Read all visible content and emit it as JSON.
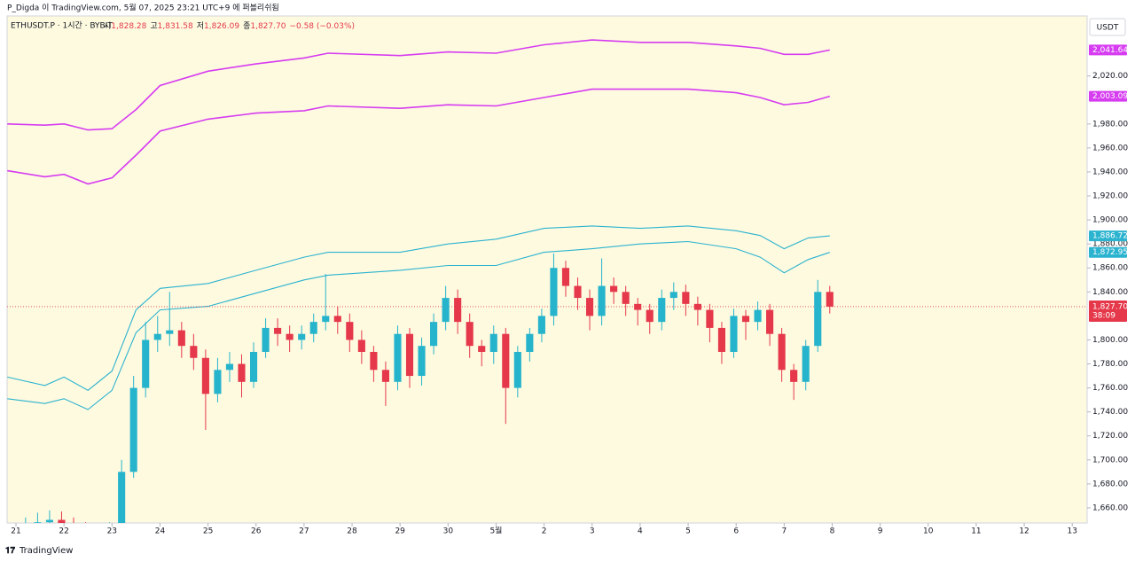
{
  "chart_data": {
    "type": "candlestick",
    "header": "P_Digda 이 TradingView.com, 5월 07, 2025 23:21 UTC+9 에 퍼블리쉬됨",
    "symbol": "ETHUSDT.P · 1시간 · BYBIT",
    "ohlc": [
      {
        "label": "시",
        "value": "1,828.28"
      },
      {
        "label": "고",
        "value": "1,831.58"
      },
      {
        "label": "저",
        "value": "1,826.09"
      },
      {
        "label": "종",
        "value": "1,827.70"
      }
    ],
    "change": "−0.58 (−0.03%)",
    "currency": "USDT",
    "footer": "TradingView",
    "xlim": [
      -0.185,
      22.31
    ],
    "xticks": [
      {
        "value": 0,
        "label": "21"
      },
      {
        "value": 1,
        "label": "22"
      },
      {
        "value": 2,
        "label": "23"
      },
      {
        "value": 3,
        "label": "24"
      },
      {
        "value": 4,
        "label": "25"
      },
      {
        "value": 5,
        "label": "26"
      },
      {
        "value": 6,
        "label": "27"
      },
      {
        "value": 7,
        "label": "28"
      },
      {
        "value": 8,
        "label": "29"
      },
      {
        "value": 9,
        "label": "30"
      },
      {
        "value": 10,
        "label": "5월"
      },
      {
        "value": 11,
        "label": "2"
      },
      {
        "value": 12,
        "label": "3"
      },
      {
        "value": 13,
        "label": "4"
      },
      {
        "value": 14,
        "label": "5"
      },
      {
        "value": 15,
        "label": "6"
      },
      {
        "value": 16,
        "label": "7"
      },
      {
        "value": 17,
        "label": "8"
      },
      {
        "value": 18,
        "label": "9"
      },
      {
        "value": 19,
        "label": "10"
      },
      {
        "value": 20,
        "label": "11"
      },
      {
        "value": 21,
        "label": "12"
      },
      {
        "value": 22,
        "label": "13"
      }
    ],
    "ylim": [
      1647.4,
      2070
    ],
    "yticks": [
      {
        "value": 1660,
        "label": "1,660.00"
      },
      {
        "value": 1680,
        "label": "1,680.00"
      },
      {
        "value": 1700,
        "label": "1,700.00"
      },
      {
        "value": 1720,
        "label": "1,720.00"
      },
      {
        "value": 1740,
        "label": "1,740.00"
      },
      {
        "value": 1760,
        "label": "1,760.00"
      },
      {
        "value": 1780,
        "label": "1,780.00"
      },
      {
        "value": 1800,
        "label": "1,800.00"
      },
      {
        "value": 1840,
        "label": "1,840.00"
      },
      {
        "value": 1860,
        "label": "1,860.00"
      },
      {
        "value": 1880,
        "label": "1,880.00"
      },
      {
        "value": 1900,
        "label": "1,900.00"
      },
      {
        "value": 1920,
        "label": "1,920.00"
      },
      {
        "value": 1940,
        "label": "1,940.00"
      },
      {
        "value": 1960,
        "label": "1,960.00"
      },
      {
        "value": 1980,
        "label": "1,980.00"
      },
      {
        "value": 2020,
        "label": "2,020.00"
      }
    ],
    "up_color": "#26b4cc",
    "down_color": "#e5384a",
    "candles": {
      "x": [
        0.2,
        0.45,
        0.7,
        0.95,
        1.2,
        1.45,
        1.7,
        1.95,
        2.2,
        2.45,
        2.7,
        2.95,
        3.2,
        3.45,
        3.7,
        3.95,
        4.2,
        4.45,
        4.7,
        4.95,
        5.2,
        5.45,
        5.7,
        5.95,
        6.2,
        6.45,
        6.7,
        6.95,
        7.2,
        7.45,
        7.7,
        7.95,
        8.2,
        8.45,
        8.7,
        8.95,
        9.2,
        9.45,
        9.7,
        9.95,
        10.2,
        10.45,
        10.7,
        10.95,
        11.2,
        11.45,
        11.7,
        11.95,
        12.2,
        12.45,
        12.7,
        12.95,
        13.2,
        13.45,
        13.7,
        13.95,
        14.2,
        14.45,
        14.7,
        14.95,
        15.2,
        15.45,
        15.7,
        15.95,
        16.2,
        16.45,
        16.7,
        16.95
      ],
      "open": [
        1643,
        1645,
        1648,
        1650,
        1646,
        1643,
        1641,
        1640,
        1642,
        1690,
        1760,
        1800,
        1805,
        1808,
        1795,
        1785,
        1755,
        1775,
        1780,
        1765,
        1790,
        1810,
        1805,
        1800,
        1805,
        1815,
        1820,
        1815,
        1800,
        1790,
        1775,
        1765,
        1805,
        1770,
        1795,
        1815,
        1835,
        1815,
        1795,
        1790,
        1805,
        1760,
        1790,
        1805,
        1820,
        1860,
        1845,
        1835,
        1820,
        1845,
        1840,
        1830,
        1825,
        1815,
        1835,
        1840,
        1830,
        1825,
        1810,
        1790,
        1820,
        1815,
        1825,
        1805,
        1775,
        1765,
        1795,
        1840
      ],
      "high": [
        1652,
        1656,
        1658,
        1657,
        1652,
        1648,
        1646,
        1648,
        1700,
        1770,
        1815,
        1820,
        1840,
        1815,
        1805,
        1792,
        1785,
        1790,
        1788,
        1798,
        1818,
        1818,
        1812,
        1812,
        1822,
        1855,
        1828,
        1822,
        1808,
        1795,
        1782,
        1812,
        1810,
        1802,
        1822,
        1845,
        1842,
        1822,
        1800,
        1812,
        1810,
        1795,
        1810,
        1826,
        1872,
        1866,
        1852,
        1842,
        1868,
        1852,
        1845,
        1835,
        1830,
        1842,
        1848,
        1846,
        1836,
        1830,
        1815,
        1826,
        1825,
        1832,
        1830,
        1810,
        1780,
        1800,
        1850,
        1845
      ],
      "low": [
        1636,
        1638,
        1642,
        1640,
        1636,
        1634,
        1632,
        1634,
        1636,
        1685,
        1752,
        1790,
        1795,
        1785,
        1775,
        1725,
        1748,
        1765,
        1752,
        1760,
        1785,
        1795,
        1790,
        1792,
        1798,
        1808,
        1805,
        1790,
        1780,
        1765,
        1745,
        1758,
        1760,
        1762,
        1788,
        1808,
        1805,
        1785,
        1778,
        1780,
        1730,
        1752,
        1782,
        1798,
        1812,
        1836,
        1825,
        1808,
        1812,
        1830,
        1820,
        1812,
        1805,
        1808,
        1825,
        1820,
        1812,
        1798,
        1780,
        1785,
        1800,
        1808,
        1795,
        1765,
        1750,
        1758,
        1790,
        1822
      ],
      "close": [
        1645,
        1648,
        1650,
        1646,
        1643,
        1641,
        1640,
        1642,
        1690,
        1760,
        1800,
        1805,
        1808,
        1795,
        1785,
        1755,
        1775,
        1780,
        1765,
        1790,
        1810,
        1805,
        1800,
        1805,
        1815,
        1820,
        1815,
        1800,
        1790,
        1775,
        1765,
        1805,
        1770,
        1795,
        1815,
        1835,
        1815,
        1795,
        1790,
        1805,
        1760,
        1790,
        1805,
        1820,
        1860,
        1845,
        1835,
        1820,
        1845,
        1840,
        1830,
        1825,
        1815,
        1835,
        1840,
        1830,
        1825,
        1810,
        1790,
        1820,
        1815,
        1825,
        1805,
        1775,
        1765,
        1795,
        1840,
        1827.7
      ]
    },
    "bands": [
      {
        "color": "#d63cf0",
        "x": [
          -0.18,
          0.6,
          1.0,
          1.5,
          2.0,
          2.5,
          3.0,
          4.0,
          5.0,
          6.0,
          6.5,
          8.0,
          9.0,
          10.0,
          11.0,
          12.0,
          13.0,
          14.0,
          15.0,
          15.5,
          16.0,
          16.5,
          16.95
        ],
        "values": [
          1980,
          1979,
          1980,
          1975,
          1976,
          1992,
          2012,
          2024,
          2030,
          2035,
          2039,
          2037,
          2040,
          2039,
          2046,
          2050,
          2048,
          2048,
          2045,
          2043,
          2038,
          2038,
          2041.64
        ],
        "value_label": "2,041.64"
      },
      {
        "color": "#d63cf0",
        "x": [
          -0.18,
          0.6,
          1.0,
          1.5,
          2.0,
          2.5,
          3.0,
          4.0,
          5.0,
          6.0,
          6.5,
          8.0,
          9.0,
          10.0,
          11.0,
          12.0,
          13.0,
          14.0,
          15.0,
          15.5,
          16.0,
          16.5,
          16.95
        ],
        "values": [
          1941,
          1936,
          1938,
          1930,
          1935,
          1954,
          1974,
          1984,
          1989,
          1991,
          1995,
          1993,
          1996,
          1995,
          2002,
          2009,
          2009,
          2009,
          2006,
          2002,
          1996,
          1998,
          2003.09
        ],
        "value_label": "2,003.09"
      },
      {
        "color": "#2bb3cf",
        "x": [
          -0.18,
          0.6,
          1.0,
          1.5,
          2.0,
          2.5,
          3.0,
          4.0,
          5.0,
          6.0,
          6.5,
          8.0,
          9.0,
          10.0,
          11.0,
          12.0,
          13.0,
          14.0,
          15.0,
          15.5,
          16.0,
          16.5,
          16.95
        ],
        "values": [
          1769,
          1762,
          1769,
          1758,
          1774,
          1825,
          1843,
          1847,
          1858,
          1869,
          1873,
          1873,
          1880,
          1884,
          1893,
          1895,
          1893,
          1895,
          1891,
          1887,
          1876,
          1885,
          1886.72
        ],
        "value_label": "1,886.72"
      },
      {
        "color": "#2bb3cf",
        "x": [
          -0.18,
          0.6,
          1.0,
          1.5,
          2.0,
          2.5,
          3.0,
          4.0,
          5.0,
          6.0,
          6.5,
          8.0,
          9.0,
          10.0,
          11.0,
          12.0,
          13.0,
          14.0,
          15.0,
          15.5,
          16.0,
          16.5,
          16.95
        ],
        "values": [
          1751,
          1747,
          1751,
          1742,
          1758,
          1806,
          1825,
          1828,
          1839,
          1850,
          1854,
          1858,
          1862,
          1862,
          1873,
          1876,
          1880,
          1882,
          1876,
          1869,
          1856,
          1867,
          1872.95
        ],
        "value_label": "1,872.95"
      }
    ],
    "last_price": 1827.7,
    "last_price_label": "1,827.70",
    "countdown": "38:09"
  }
}
